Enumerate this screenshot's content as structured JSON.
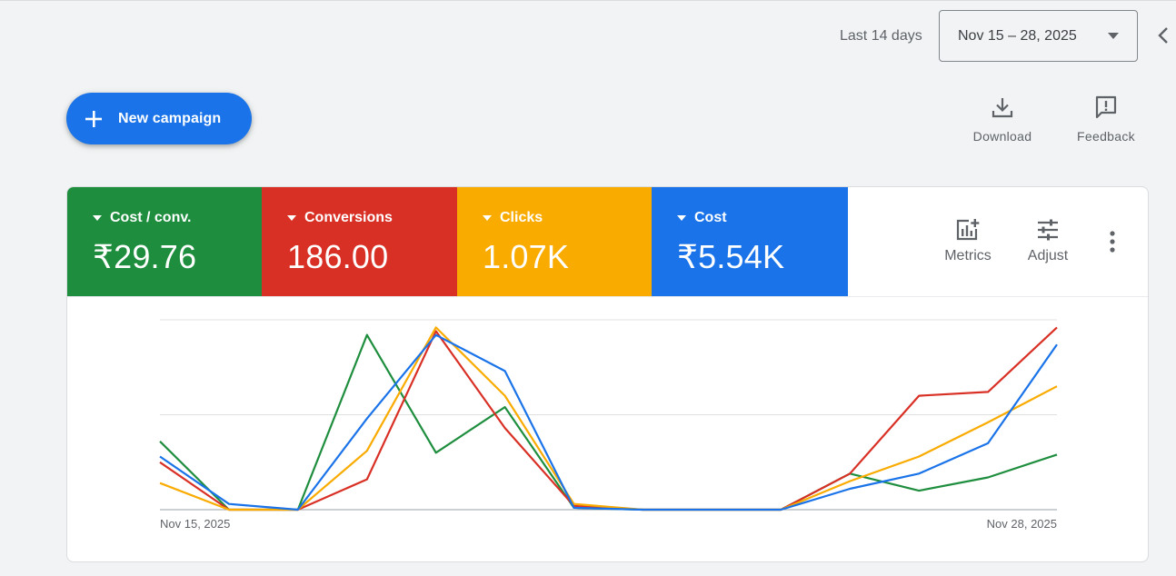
{
  "header": {
    "range_label": "Last 14 days",
    "date_range_value": "Nov 15 – 28, 2025",
    "collapse_icon": "chevron-left-icon"
  },
  "actions": {
    "new_campaign_label": "New campaign",
    "download_label": "Download",
    "feedback_label": "Feedback"
  },
  "metrics": [
    {
      "name": "Cost / conv.",
      "value": "₹29.76",
      "color": "#1e8e3e"
    },
    {
      "name": "Conversions",
      "value": "186.00",
      "color": "#d93025"
    },
    {
      "name": "Clicks",
      "value": "1.07K",
      "color": "#f9ab00"
    },
    {
      "name": "Cost",
      "value": "₹5.54K",
      "color": "#1a73e8"
    }
  ],
  "card_tools": {
    "metrics_label": "Metrics",
    "adjust_label": "Adjust",
    "more_icon": "more-vert-icon"
  },
  "chart_data": {
    "type": "line",
    "x": [
      "Nov 15, 2025",
      "Nov 16, 2025",
      "Nov 17, 2025",
      "Nov 18, 2025",
      "Nov 19, 2025",
      "Nov 20, 2025",
      "Nov 21, 2025",
      "Nov 22, 2025",
      "Nov 23, 2025",
      "Nov 24, 2025",
      "Nov 25, 2025",
      "Nov 26, 2025",
      "Nov 27, 2025",
      "Nov 28, 2025"
    ],
    "x_tick_labels": [
      "Nov 15, 2025",
      "Nov 28, 2025"
    ],
    "ylim": [
      0,
      1
    ],
    "grid": true,
    "series": [
      {
        "name": "Cost / conv.",
        "color": "#1e8e3e",
        "values": [
          0.36,
          0.0,
          0.0,
          0.92,
          0.3,
          0.54,
          0.01,
          0.0,
          0.0,
          0.0,
          0.19,
          0.1,
          0.17,
          0.29
        ]
      },
      {
        "name": "Conversions",
        "color": "#d93025",
        "values": [
          0.25,
          0.0,
          0.0,
          0.16,
          0.94,
          0.43,
          0.02,
          0.0,
          0.0,
          0.0,
          0.19,
          0.6,
          0.62,
          0.96
        ]
      },
      {
        "name": "Clicks",
        "color": "#f9ab00",
        "values": [
          0.14,
          0.0,
          0.0,
          0.31,
          0.96,
          0.6,
          0.03,
          0.0,
          0.0,
          0.0,
          0.15,
          0.28,
          0.46,
          0.65
        ]
      },
      {
        "name": "Cost",
        "color": "#1a73e8",
        "values": [
          0.28,
          0.03,
          0.0,
          0.48,
          0.92,
          0.73,
          0.01,
          0.0,
          0.0,
          0.0,
          0.11,
          0.19,
          0.35,
          0.87
        ]
      }
    ]
  }
}
